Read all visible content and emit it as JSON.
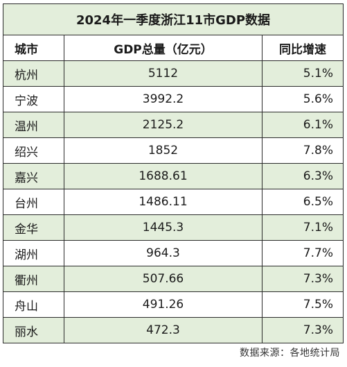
{
  "title": "2024年一季度浙江11市GDP数据",
  "headers": {
    "city": "城市",
    "gdp": "GDP总量（亿元）",
    "growth": "同比增速"
  },
  "rows": [
    {
      "city": "杭州",
      "gdp": "5112",
      "growth": "5.1%"
    },
    {
      "city": "宁波",
      "gdp": "3992.2",
      "growth": "5.6%"
    },
    {
      "city": "温州",
      "gdp": "2125.2",
      "growth": "6.1%"
    },
    {
      "city": "绍兴",
      "gdp": "1852",
      "growth": "7.8%"
    },
    {
      "city": "嘉兴",
      "gdp": "1688.61",
      "growth": "6.3%"
    },
    {
      "city": "台州",
      "gdp": "1486.11",
      "growth": "6.5%"
    },
    {
      "city": "金华",
      "gdp": "1445.3",
      "growth": "7.1%"
    },
    {
      "city": "湖州",
      "gdp": "964.3",
      "growth": "7.7%"
    },
    {
      "city": "衢州",
      "gdp": "507.66",
      "growth": "7.3%"
    },
    {
      "city": "舟山",
      "gdp": "491.26",
      "growth": "7.5%"
    },
    {
      "city": "丽水",
      "gdp": "472.3",
      "growth": "7.3%"
    }
  ],
  "source": "数据来源：各地统计局",
  "colors": {
    "shade": "#e3eedb",
    "border": "#2a2a2a"
  }
}
